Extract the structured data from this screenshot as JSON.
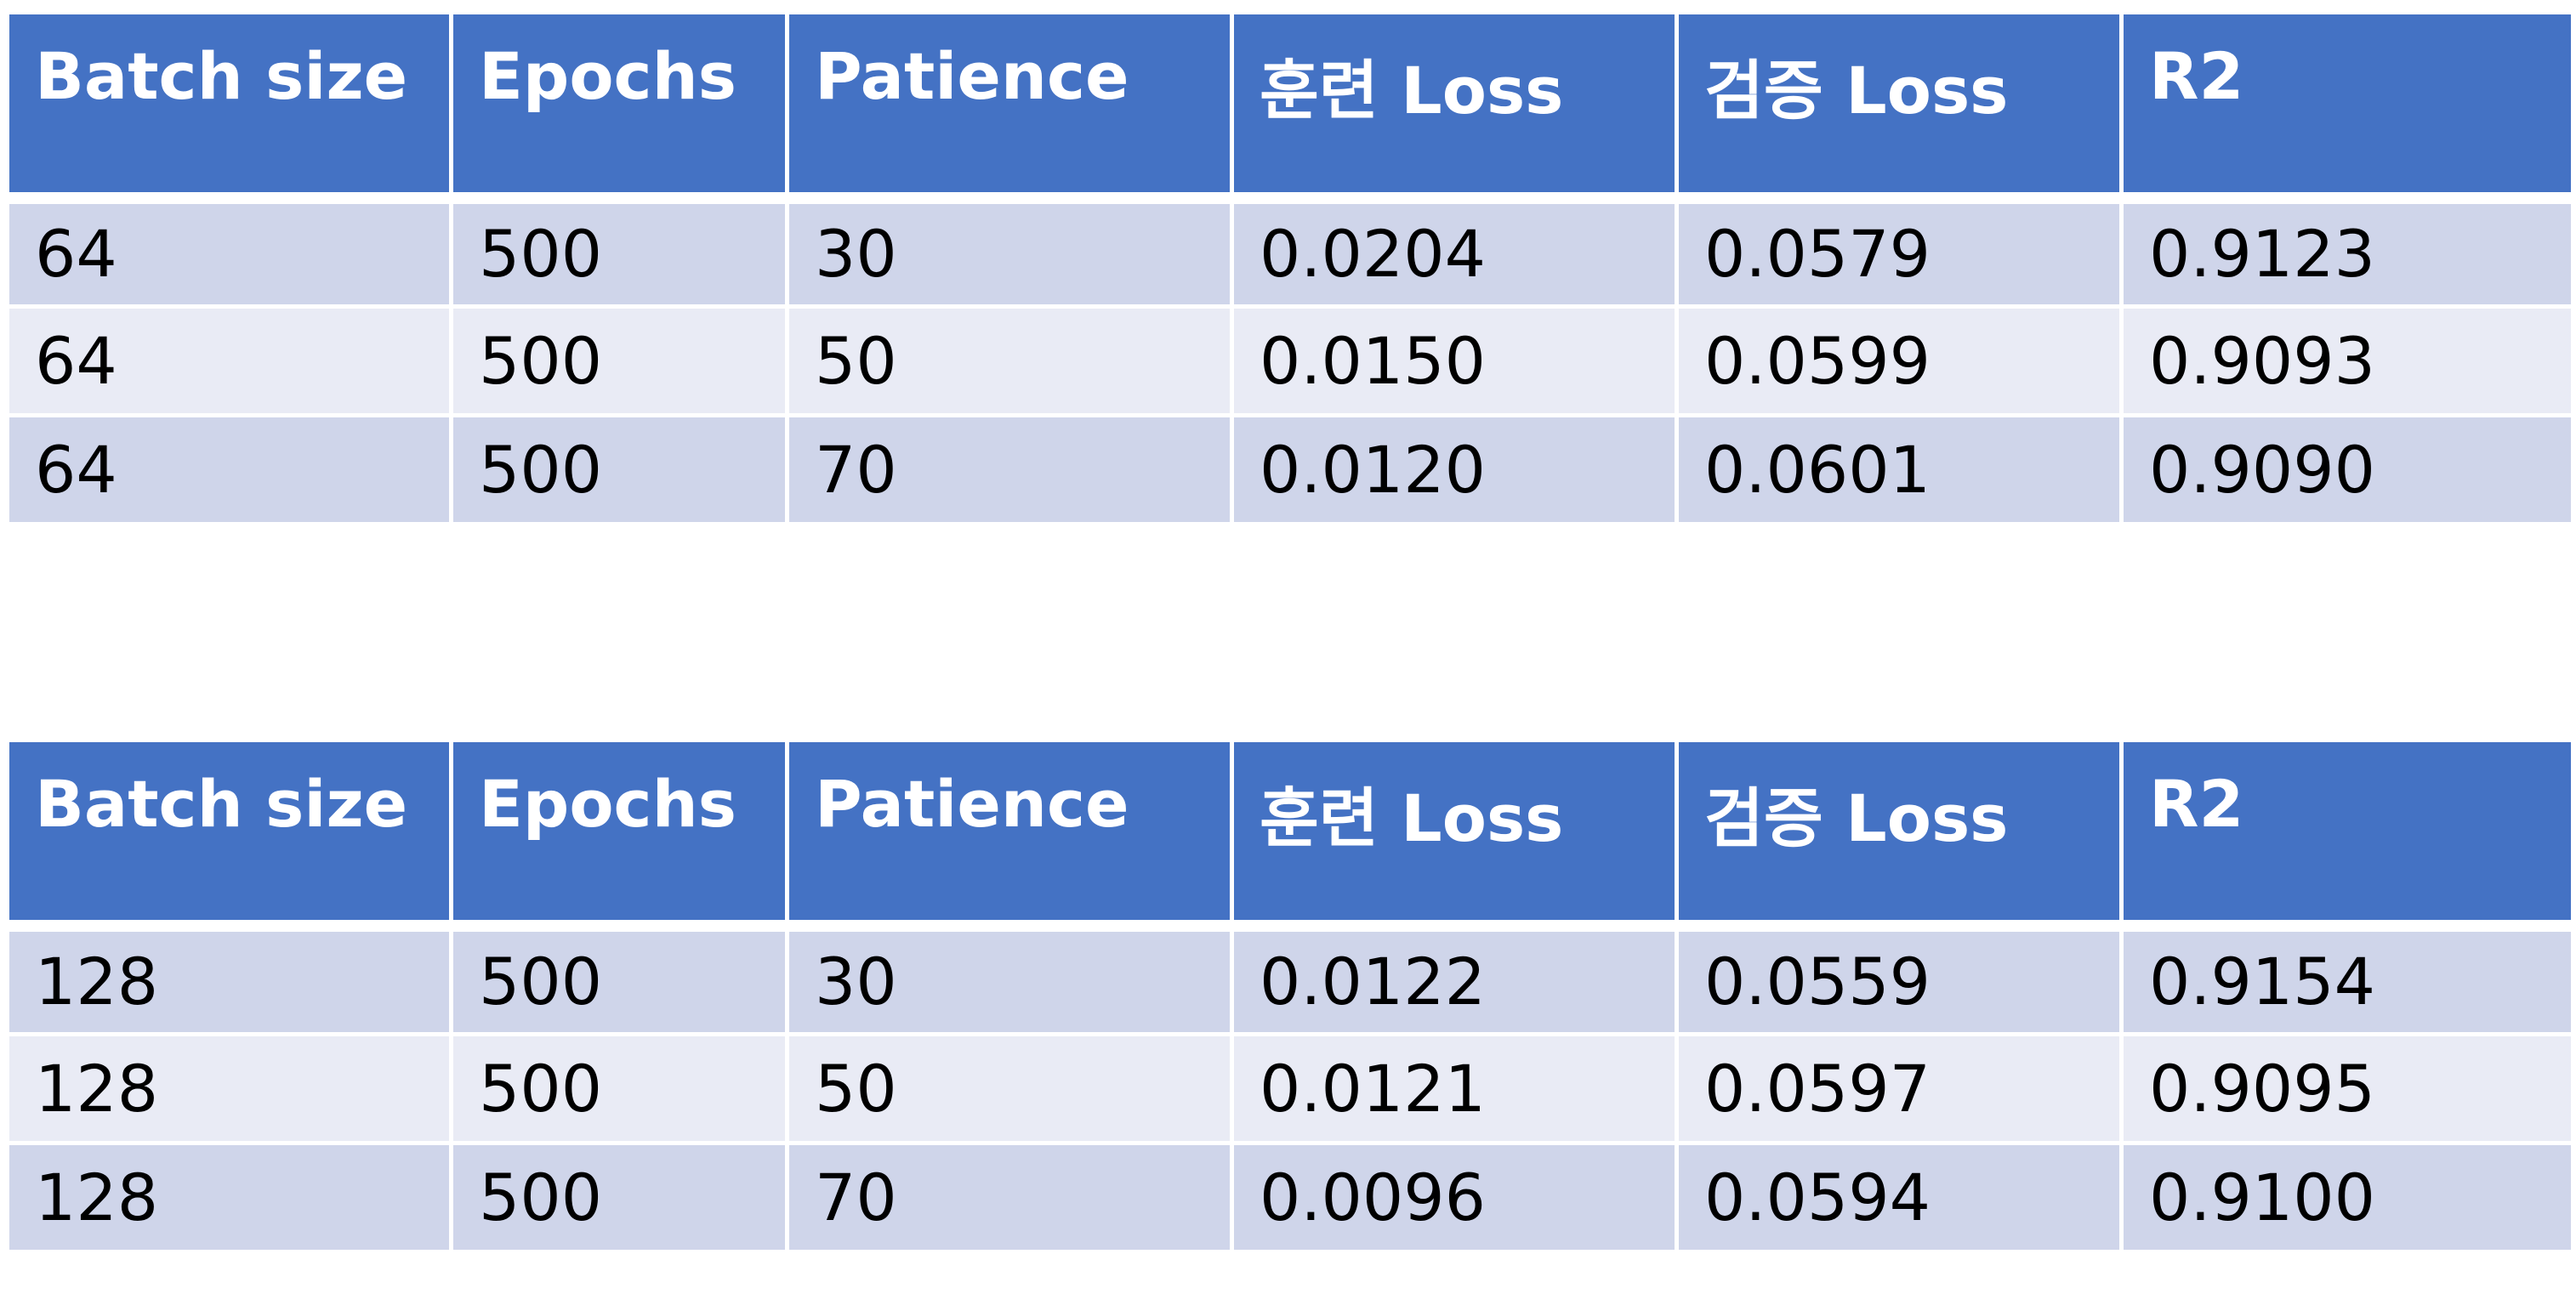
{
  "colors": {
    "header_bg": "#4472c4",
    "row_dark": "#cfd5ea",
    "row_light": "#e9ebf5"
  },
  "tables": [
    {
      "headers": [
        "Batch size",
        "Epochs",
        "Patience",
        "훈련 Loss",
        "검증 Loss",
        "R2"
      ],
      "rows": [
        [
          "64",
          "500",
          "30",
          "0.0204",
          "0.0579",
          "0.9123"
        ],
        [
          "64",
          "500",
          "50",
          "0.0150",
          "0.0599",
          "0.9093"
        ],
        [
          "64",
          "500",
          "70",
          "0.0120",
          "0.0601",
          "0.9090"
        ]
      ]
    },
    {
      "headers": [
        "Batch size",
        "Epochs",
        "Patience",
        "훈련 Loss",
        "검증 Loss",
        "R2"
      ],
      "rows": [
        [
          "128",
          "500",
          "30",
          "0.0122",
          "0.0559",
          "0.9154"
        ],
        [
          "128",
          "500",
          "50",
          "0.0121",
          "0.0597",
          "0.9095"
        ],
        [
          "128",
          "500",
          "70",
          "0.0096",
          "0.0594",
          "0.9100"
        ]
      ]
    }
  ]
}
